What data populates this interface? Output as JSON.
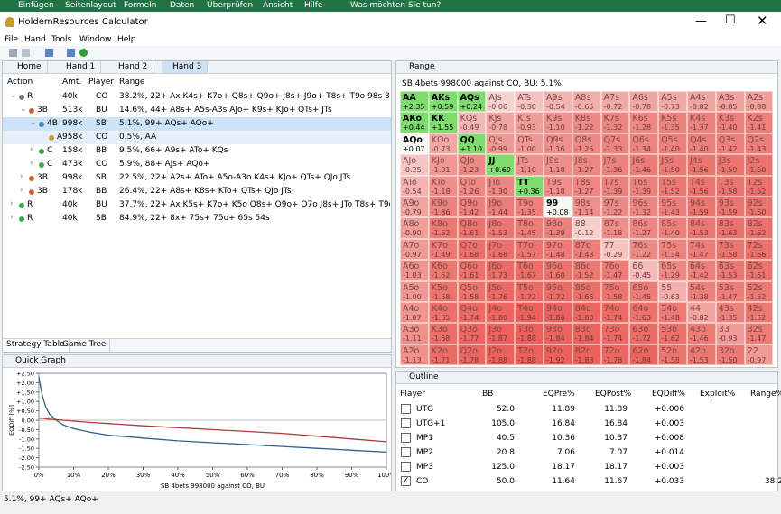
{
  "office_ribbon": {
    "tabs": [
      "Einfügen",
      "Seitenlayout",
      "Formeln",
      "Daten",
      "Überprüfen",
      "Ansicht",
      "Hilfe"
    ],
    "search": "Was möchten Sie tun?"
  },
  "window": {
    "title": "HoldemResources Calculator"
  },
  "menu": [
    "File",
    "Hand",
    "Tools",
    "Window",
    "Help"
  ],
  "tabs": [
    "Home",
    "Hand 1",
    "Hand 2",
    "Hand 3"
  ],
  "strategy_table": {
    "headers": [
      "Action",
      "Amt.",
      "Player",
      "Range"
    ],
    "rows": [
      [
        "R",
        "40k",
        "CO",
        "38.2%, 22+ Ax K4s+ K7o+ Q8s+ Q9o+ J8s+ J9o+ T8s+ T9o 98s 87s 76s 65s"
      ],
      [
        "3B",
        "513k",
        "BU",
        "14.6%, 44+ A8s+ A5s-A3s AJo+ K9s+ KJo+ QTs+ JTs"
      ],
      [
        "4B",
        "998k",
        "SB",
        "5.1%, 99+ AQs+ AQo+"
      ],
      [
        "A",
        "958k",
        "CO",
        "0.5%, AA"
      ],
      [
        "C",
        "158k",
        "BB",
        "9.5%, 66+ A9s+ ATo+ KQs"
      ],
      [
        "C",
        "473k",
        "CO",
        "5.9%, 88+ AJs+ AQo+"
      ],
      [
        "3B",
        "998k",
        "SB",
        "22.5%, 22+ A2s+ ATo+ A5o-A3o K4s+ KJo+ QTs+ QJo JTs"
      ],
      [
        "3B",
        "178k",
        "BB",
        "26.4%, 22+ A8s+ K8s+ KTo+ QTs+ QJo JTs"
      ],
      [
        "R",
        "40k",
        "BU",
        "37.7%, 22+ Ax K5s+ K7o+ K5o Q8s+ Q9o+ Q7o J8s+ JTo T8s+ T9o 98s"
      ],
      [
        "R",
        "40k",
        "SB",
        "84.9%, 22+ 8x+ 75s+ 75o+ 65s 54s"
      ]
    ]
  },
  "bottom_tabs": [
    "Strategy Table",
    "Game Tree"
  ],
  "quick_graph": {
    "title": "Quick Graph",
    "chart": {
      "type": "line",
      "x_label": "SB 4bets 998000 against CO, BU",
      "y_label": "EQDiff [%]",
      "xlim": [
        0,
        100
      ],
      "xticks": [
        {
          "value": 0,
          "label": "0%"
        },
        {
          "value": 10,
          "label": "10%"
        },
        {
          "value": 20,
          "label": "20%"
        },
        {
          "value": 30,
          "label": "30%"
        },
        {
          "value": 40,
          "label": "40%"
        },
        {
          "value": 50,
          "label": "50%"
        },
        {
          "value": 60,
          "label": "60%"
        },
        {
          "value": 70,
          "label": "70%"
        },
        {
          "value": 80,
          "label": "80%"
        },
        {
          "value": 90,
          "label": "90%"
        },
        {
          "value": 100,
          "label": "100%"
        }
      ],
      "ylim": [
        -2.5,
        2.5
      ],
      "yticks": [
        {
          "value": 2.5,
          "label": "+2.50"
        },
        {
          "value": 2,
          "label": "+2.00"
        },
        {
          "value": 1.5,
          "label": "+1.50"
        },
        {
          "value": 1,
          "label": "+1.00"
        },
        {
          "value": 0.5,
          "label": "+0.50"
        },
        {
          "value": 0,
          "label": "0.00"
        },
        {
          "value": -0.5,
          "label": "-0.50"
        },
        {
          "value": -1,
          "label": "-1.00"
        },
        {
          "value": -1.5,
          "label": "-1.50"
        },
        {
          "value": -2,
          "label": "-2.00"
        },
        {
          "value": -2.5,
          "label": "-2.50"
        }
      ],
      "x": [
        0,
        1,
        2,
        3,
        5,
        7,
        10,
        15,
        20,
        30,
        40,
        50,
        60,
        70,
        80,
        90,
        100
      ],
      "series": [
        {
          "color": "#2f5f8a",
          "values": [
            2.3,
            1.3,
            0.7,
            0.35,
            0.0,
            -0.25,
            -0.45,
            -0.65,
            -0.8,
            -0.95,
            -1.1,
            -1.2,
            -1.3,
            -1.4,
            -1.5,
            -1.6,
            -1.7
          ]
        },
        {
          "color": "#b03a3a",
          "values": [
            0.1,
            0.1,
            0.08,
            0.06,
            0.03,
            0.0,
            -0.05,
            -0.12,
            -0.18,
            -0.3,
            -0.4,
            -0.5,
            -0.6,
            -0.7,
            -0.85,
            -1.0,
            -1.15
          ]
        }
      ]
    }
  },
  "range_panel": {
    "title": "Range",
    "subtitle": "SB 4bets 998000 against CO, BU: 5.1%",
    "matrix": [
      [
        [
          "AA",
          "+2.35"
        ],
        [
          "AKs",
          "+0.59"
        ],
        [
          "AQs",
          "+0.24"
        ],
        [
          "AJs",
          "-0.06"
        ],
        [
          "ATs",
          "-0.30"
        ],
        [
          "A9s",
          "-0.54"
        ],
        [
          "A8s",
          "-0.65"
        ],
        [
          "A7s",
          "-0.72"
        ],
        [
          "A6s",
          "-0.78"
        ],
        [
          "A5s",
          "-0.73"
        ],
        [
          "A4s",
          "-0.82"
        ],
        [
          "A3s",
          "-0.85"
        ],
        [
          "A2s",
          "-0.88"
        ]
      ],
      [
        [
          "AKo",
          "+0.44"
        ],
        [
          "KK",
          "+1.55"
        ],
        [
          "KQs",
          "-0.49"
        ],
        [
          "KJs",
          "-0.78"
        ],
        [
          "KTs",
          "-0.93"
        ],
        [
          "K9s",
          "-1.10"
        ],
        [
          "K8s",
          "-1.22"
        ],
        [
          "K7s",
          "-1.32"
        ],
        [
          "K6s",
          "-1.28"
        ],
        [
          "K5s",
          "-1.35"
        ],
        [
          "K4s",
          "-1.37"
        ],
        [
          "K3s",
          "-1.40"
        ],
        [
          "K2s",
          "-1.41"
        ]
      ],
      [
        [
          "AQo",
          "+0.07"
        ],
        [
          "KQo",
          "-0.73"
        ],
        [
          "QQ",
          "+1.10"
        ],
        [
          "QJs",
          "-0.99"
        ],
        [
          "QTs",
          "-1.00"
        ],
        [
          "Q9s",
          "-1.16"
        ],
        [
          "Q8s",
          "-1.25"
        ],
        [
          "Q7s",
          "-1.33"
        ],
        [
          "Q6s",
          "-1.34"
        ],
        [
          "Q5s",
          "-1.40"
        ],
        [
          "Q4s",
          "-1.40"
        ],
        [
          "Q3s",
          "-1.42"
        ],
        [
          "Q2s",
          "-1.43"
        ]
      ],
      [
        [
          "AJo",
          "-0.25"
        ],
        [
          "KJo",
          "-1.01"
        ],
        [
          "QJo",
          "-1.23"
        ],
        [
          "JJ",
          "+0.69"
        ],
        [
          "JTs",
          "-1.10"
        ],
        [
          "J9s",
          "-1.18"
        ],
        [
          "J8s",
          "-1.27"
        ],
        [
          "J7s",
          "-1.36"
        ],
        [
          "J6s",
          "-1.46"
        ],
        [
          "J5s",
          "-1.50"
        ],
        [
          "J4s",
          "-1.56"
        ],
        [
          "J3s",
          "-1.59"
        ],
        [
          "J2s",
          "-1.60"
        ]
      ],
      [
        [
          "ATo",
          "-0.54"
        ],
        [
          "KTo",
          "-1.18"
        ],
        [
          "QTo",
          "-1.26"
        ],
        [
          "JTo",
          "-1.30"
        ],
        [
          "TT",
          "+0.36"
        ],
        [
          "T9s",
          "-1.18"
        ],
        [
          "T8s",
          "-1.27"
        ],
        [
          "T7s",
          "-1.39"
        ],
        [
          "T6s",
          "-1.39"
        ],
        [
          "T5s",
          "-1.52"
        ],
        [
          "T4s",
          "-1.56"
        ],
        [
          "T3s",
          "-1.58"
        ],
        [
          "T2s",
          "-1.62"
        ]
      ],
      [
        [
          "A9o",
          "-0.79"
        ],
        [
          "K9o",
          "-1.36"
        ],
        [
          "Q9o",
          "-1.42"
        ],
        [
          "J9o",
          "-1.44"
        ],
        [
          "T9o",
          "-1.35"
        ],
        [
          "99",
          "+0.08"
        ],
        [
          "98s",
          "-1.14"
        ],
        [
          "97s",
          "-1.22"
        ],
        [
          "96s",
          "-1.32"
        ],
        [
          "95s",
          "-1.43"
        ],
        [
          "94s",
          "-1.59"
        ],
        [
          "93s",
          "-1.59"
        ],
        [
          "92s",
          "-1.60"
        ]
      ],
      [
        [
          "A8o",
          "-0.90"
        ],
        [
          "K8o",
          "-1.52"
        ],
        [
          "Q8o",
          "-1.61"
        ],
        [
          "J8o",
          "-1.53"
        ],
        [
          "T8o",
          "-1.45"
        ],
        [
          "98o",
          "-1.39"
        ],
        [
          "88",
          "-0.12"
        ],
        [
          "87s",
          "-1.18"
        ],
        [
          "86s",
          "-1.27"
        ],
        [
          "85s",
          "-1.40"
        ],
        [
          "84s",
          "-1.53"
        ],
        [
          "83s",
          "-1.63"
        ],
        [
          "82s",
          "-1.62"
        ]
      ],
      [
        [
          "A7o",
          "-0.97"
        ],
        [
          "K7o",
          "-1.49"
        ],
        [
          "Q7o",
          "-1.68"
        ],
        [
          "J7o",
          "-1.68"
        ],
        [
          "T7o",
          "-1.57"
        ],
        [
          "97o",
          "-1.48"
        ],
        [
          "87o",
          "-1.43"
        ],
        [
          "77",
          "-0.29"
        ],
        [
          "76s",
          "-1.22"
        ],
        [
          "75s",
          "-1.34"
        ],
        [
          "74s",
          "-1.47"
        ],
        [
          "73s",
          "-1.58"
        ],
        [
          "72s",
          "-1.66"
        ]
      ],
      [
        [
          "A6o",
          "-1.03"
        ],
        [
          "K6o",
          "-1.52"
        ],
        [
          "Q6o",
          "-1.61"
        ],
        [
          "J6o",
          "-1.73"
        ],
        [
          "T6o",
          "-1.67"
        ],
        [
          "96o",
          "-1.60"
        ],
        [
          "86o",
          "-1.52"
        ],
        [
          "76o",
          "-1.47"
        ],
        [
          "66",
          "-0.45"
        ],
        [
          "65s",
          "-1.29"
        ],
        [
          "64s",
          "-1.42"
        ],
        [
          "63s",
          "-1.53"
        ],
        [
          "62s",
          "-1.61"
        ]
      ],
      [
        [
          "A5o",
          "-1.00"
        ],
        [
          "K5o",
          "-1.58"
        ],
        [
          "Q5o",
          "-1.58"
        ],
        [
          "J5o",
          "-1.76"
        ],
        [
          "T5o",
          "-1.72"
        ],
        [
          "95o",
          "-1.72"
        ],
        [
          "85o",
          "-1.66"
        ],
        [
          "75o",
          "-1.58"
        ],
        [
          "65o",
          "-1.45"
        ],
        [
          "55",
          "-0.63"
        ],
        [
          "54s",
          "-1.38"
        ],
        [
          "53s",
          "-1.47"
        ],
        [
          "52s",
          "-1.52"
        ]
      ],
      [
        [
          "A4o",
          "-1.07"
        ],
        [
          "K4o",
          "-1.65"
        ],
        [
          "Q4o",
          "-1.74"
        ],
        [
          "J4o",
          "-1.80"
        ],
        [
          "T4o",
          "-1.94"
        ],
        [
          "94o",
          "-1.86"
        ],
        [
          "84o",
          "-1.80"
        ],
        [
          "74o",
          "-1.74"
        ],
        [
          "64o",
          "-1.63"
        ],
        [
          "54o",
          "-1.48"
        ],
        [
          "44",
          "-0.82"
        ],
        [
          "43s",
          "-1.35"
        ],
        [
          "42s",
          "-1.52"
        ]
      ],
      [
        [
          "A3o",
          "-1.11"
        ],
        [
          "K3o",
          "-1.68"
        ],
        [
          "Q3o",
          "-1.77"
        ],
        [
          "J3o",
          "-1.87"
        ],
        [
          "T3o",
          "-1.88"
        ],
        [
          "93o",
          "-1.84"
        ],
        [
          "83o",
          "-1.84"
        ],
        [
          "73o",
          "-1.74"
        ],
        [
          "63o",
          "-1.72"
        ],
        [
          "53o",
          "-1.62"
        ],
        [
          "43o",
          "-1.46"
        ],
        [
          "33",
          "-0.93"
        ],
        [
          "32s",
          "-1.47"
        ]
      ],
      [
        [
          "A2o",
          "-1.13"
        ],
        [
          "K2o",
          "-1.71"
        ],
        [
          "Q2o",
          "-1.78"
        ],
        [
          "J2o",
          "-1.88"
        ],
        [
          "T2o",
          "-1.88"
        ],
        [
          "92o",
          "-1.92"
        ],
        [
          "82o",
          "-1.88"
        ],
        [
          "72o",
          "-1.78"
        ],
        [
          "62o",
          "-1.84"
        ],
        [
          "52o",
          "-1.58"
        ],
        [
          "42o",
          "-1.53"
        ],
        [
          "32o",
          "-1.50"
        ],
        [
          "22",
          "-0.97"
        ]
      ]
    ]
  },
  "outline": {
    "title": "Outline",
    "headers": [
      "Player",
      "BB",
      "EQPre%",
      "EQPost%",
      "EQDiff%",
      "Exploit%",
      "Range%"
    ],
    "rows": [
      {
        "checked": false,
        "cells": [
          "UTG",
          "52.0",
          "11.89",
          "11.89",
          "+0.006"
        ]
      },
      {
        "checked": false,
        "cells": [
          "UTG+1",
          "105.0",
          "16.84",
          "16.84",
          "+0.003"
        ]
      },
      {
        "checked": false,
        "cells": [
          "MP1",
          "40.5",
          "10.36",
          "10.37",
          "+0.008"
        ]
      },
      {
        "checked": false,
        "cells": [
          "MP2",
          "20.8",
          "7.06",
          "7.07",
          "+0.014"
        ]
      },
      {
        "checked": false,
        "cells": [
          "MP3",
          "125.0",
          "18.17",
          "18.17",
          "+0.003"
        ]
      },
      {
        "checked": true,
        "cells": [
          "CO",
          "50.0",
          "11.64",
          "11.67",
          "+0.033",
          "",
          "38.2"
        ]
      }
    ]
  },
  "status": "5.1%, 99+ AQs+ AQo+"
}
